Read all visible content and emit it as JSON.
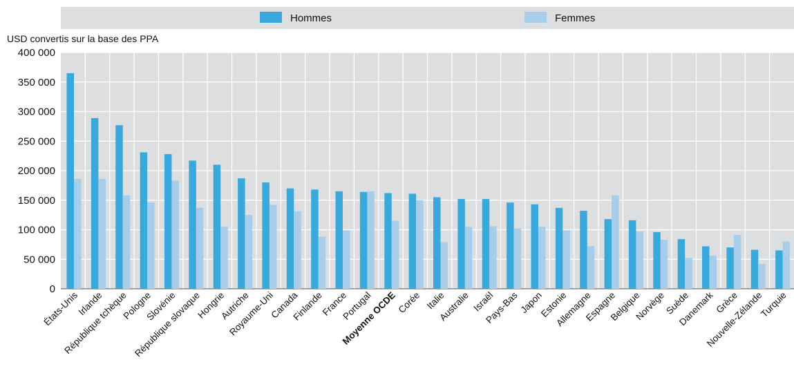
{
  "chart_data": {
    "type": "bar",
    "title": "",
    "ylabel": "USD convertis sur la base des PPA",
    "xlabel": "",
    "ylim": [
      0,
      400000
    ],
    "yticks": [
      0,
      50000,
      100000,
      150000,
      200000,
      250000,
      300000,
      350000,
      400000
    ],
    "ytick_labels": [
      "0",
      "50 000",
      "100 000",
      "150 000",
      "200 000",
      "250 000",
      "300 000",
      "350 000",
      "400 000"
    ],
    "legend_position": "top",
    "grid": true,
    "categories": [
      "États-Unis",
      "Irlande",
      "République tchèque",
      "Pologne",
      "Slovénie",
      "République slovaque",
      "Hongrie",
      "Autriche",
      "Royaume-Uni",
      "Canada",
      "Finlande",
      "France",
      "Portugal",
      "Moyenne OCDE",
      "Corée",
      "Italie",
      "Australie",
      "Israël",
      "Pays-Bas",
      "Japon",
      "Estonie",
      "Allemagne",
      "Espagne",
      "Belgique",
      "Norvège",
      "Suède",
      "Danemark",
      "Grèce",
      "Nouvelle-Zélande",
      "Turquie"
    ],
    "highlight_category": "Moyenne OCDE",
    "series": [
      {
        "name": "Hommes",
        "color": "#39a9dc",
        "values": [
          365000,
          289000,
          277000,
          231000,
          228000,
          217000,
          210000,
          187000,
          180000,
          170000,
          168000,
          165000,
          164000,
          162000,
          161000,
          155000,
          152000,
          152000,
          146000,
          143000,
          137000,
          132000,
          118000,
          116000,
          96000,
          84000,
          72000,
          70000,
          66000,
          65000
        ]
      },
      {
        "name": "Femmes",
        "color": "#a6cdea",
        "values": [
          186000,
          186000,
          158000,
          146000,
          183000,
          137000,
          105000,
          125000,
          142000,
          131000,
          88000,
          99000,
          165000,
          115000,
          150000,
          79000,
          105000,
          106000,
          102000,
          105000,
          99000,
          72000,
          158000,
          97000,
          83000,
          52000,
          56000,
          91000,
          42000,
          80000
        ]
      }
    ]
  }
}
